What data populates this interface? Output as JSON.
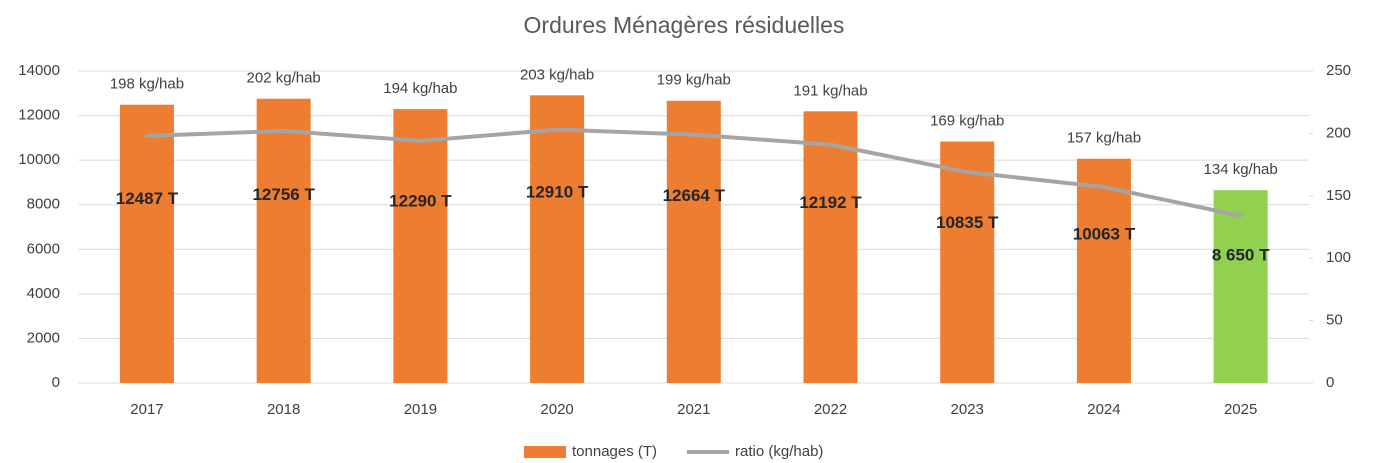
{
  "chart_data": {
    "type": "bar",
    "title": "Ordures Ménagères résiduelles",
    "categories": [
      "2017",
      "2018",
      "2019",
      "2020",
      "2021",
      "2022",
      "2023",
      "2024",
      "2025"
    ],
    "series": [
      {
        "name": "tonnages (T)",
        "type": "bar",
        "colors": [
          "#ed7d31",
          "#ed7d31",
          "#ed7d31",
          "#ed7d31",
          "#ed7d31",
          "#ed7d31",
          "#ed7d31",
          "#ed7d31",
          "#92d050"
        ],
        "values": [
          12487,
          12756,
          12290,
          12910,
          12664,
          12192,
          10835,
          10063,
          8650
        ],
        "value_labels": [
          "12487 T",
          "12756 T",
          "12290 T",
          "12910 T",
          "12664 T",
          "12192 T",
          "10835 T",
          "10063 T",
          "8 650 T"
        ]
      },
      {
        "name": "ratio (kg/hab)",
        "type": "line",
        "axis": "y2",
        "color": "#a5a5a5",
        "values": [
          198,
          202,
          194,
          203,
          199,
          191,
          169,
          157,
          134
        ],
        "value_labels": [
          "198 kg/hab",
          "202 kg/hab",
          "194 kg/hab",
          "203 kg/hab",
          "199 kg/hab",
          "191 kg/hab",
          "169 kg/hab",
          "157 kg/hab",
          "134 kg/hab"
        ]
      }
    ],
    "ylim": [
      0,
      14000
    ],
    "yticks": [
      0,
      2000,
      4000,
      6000,
      8000,
      10000,
      12000,
      14000
    ],
    "y2lim": [
      0,
      250
    ],
    "y2ticks": [
      0,
      50,
      100,
      150,
      200,
      250
    ],
    "grid": true,
    "legend": "bottom"
  }
}
